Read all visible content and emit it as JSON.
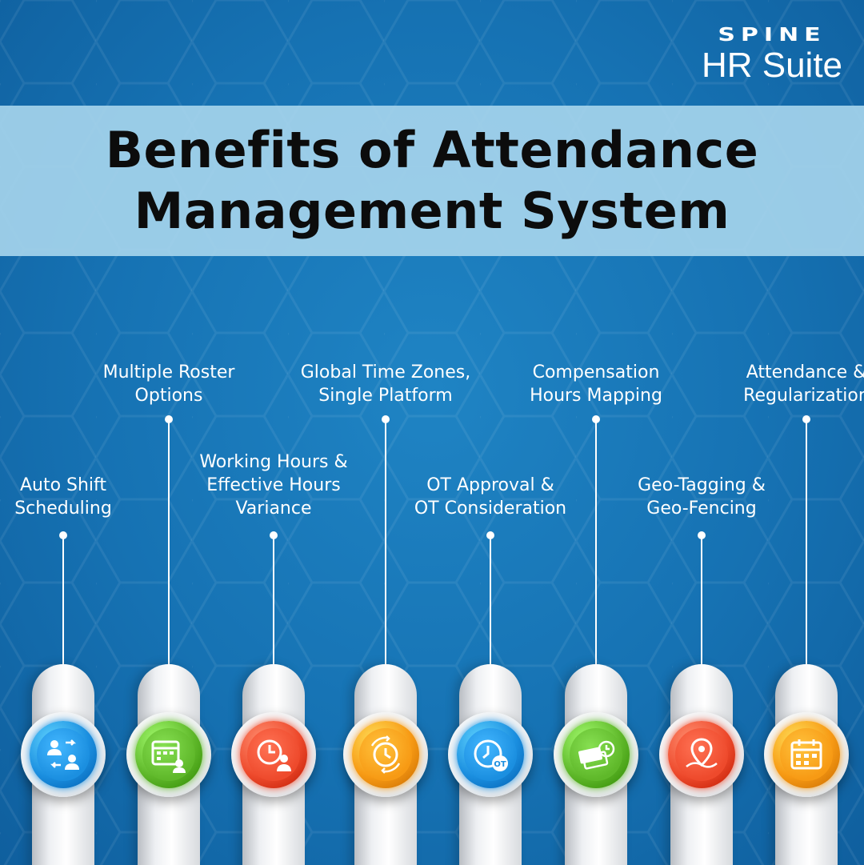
{
  "brand": {
    "name": "SPINE",
    "product": "HR Suite"
  },
  "title": {
    "line1": "Benefits of Attendance",
    "line2": "Management System"
  },
  "benefits": [
    {
      "line1": "Auto Shift",
      "line2": "Scheduling",
      "line3": "",
      "icon": "shift-swap-icon",
      "color": "#1b8fe0"
    },
    {
      "line1": "Multiple Roster",
      "line2": "Options",
      "line3": "",
      "icon": "roster-calendar-icon",
      "color": "#5fb82a"
    },
    {
      "line1": "Working Hours &",
      "line2": "Effective Hours",
      "line3": "Variance",
      "icon": "clock-worker-icon",
      "color": "#ee4a2c"
    },
    {
      "line1": "Global Time Zones,",
      "line2": "Single Platform",
      "line3": "",
      "icon": "time-zones-icon",
      "color": "#f79a14"
    },
    {
      "line1": "OT Approval &",
      "line2": "OT Consideration",
      "line3": "",
      "icon": "overtime-clock-icon",
      "color": "#1b8fe0"
    },
    {
      "line1": "Compensation",
      "line2": "Hours Mapping",
      "line3": "",
      "icon": "compensation-money-icon",
      "color": "#5fb82a"
    },
    {
      "line1": "Geo-Tagging &",
      "line2": "Geo-Fencing",
      "line3": "",
      "icon": "geo-pin-icon",
      "color": "#ee4a2c"
    },
    {
      "line1": "Attendance &",
      "line2": "Regularization",
      "line3": "",
      "icon": "attendance-calendar-icon",
      "color": "#f79a14"
    }
  ]
}
